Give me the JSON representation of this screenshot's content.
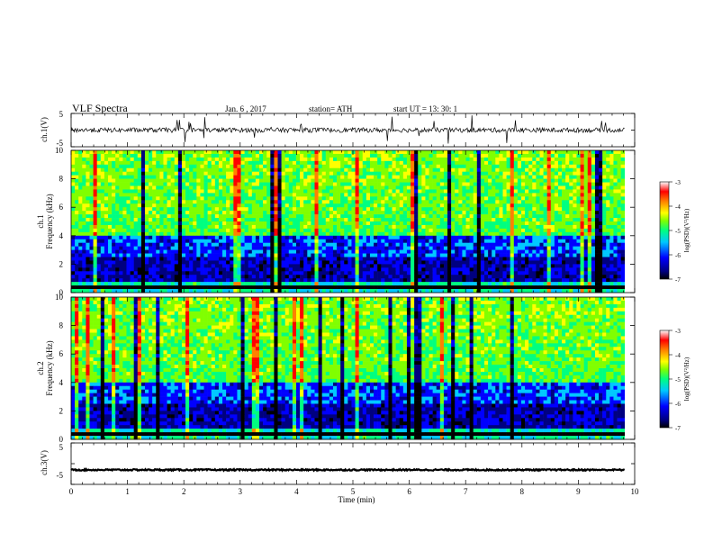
{
  "header": {
    "title": "VLF  Spectra",
    "date": "Jan. 6  , 2017",
    "station": "station= ATH",
    "start": "start  UT  =    13: 30: 1"
  },
  "colors": {
    "background": "#ffffff",
    "axis": "#000000",
    "colormap": [
      "#000000",
      "#000080",
      "#0000ff",
      "#00c8ff",
      "#00ff80",
      "#80ff00",
      "#ffff00",
      "#ff8000",
      "#ff0000",
      "#ffffff"
    ]
  },
  "chart_data": [
    {
      "type": "line",
      "panel": "ch1-waveform",
      "ylabel": "ch.1(V)",
      "yticks": [
        "5",
        "-5"
      ],
      "ylim": [
        -5,
        5
      ],
      "xlim": [
        0,
        10
      ],
      "baseline_value": 0,
      "line_color": "#000000"
    },
    {
      "type": "heatmap",
      "panel": "ch1-spectrogram",
      "ylabel_lines": [
        "ch.1",
        "Frequency  (kHz)"
      ],
      "yticks": [
        "0",
        "2",
        "4",
        "6",
        "8",
        "10"
      ],
      "ylim": [
        0,
        10
      ],
      "xlim": [
        0,
        10
      ],
      "colorbar": {
        "label": "log(PSD)(V²/Hz)",
        "ticks": [
          "-3",
          "-4",
          "-5",
          "-6",
          "-7"
        ],
        "range": [
          -7,
          -3
        ]
      }
    },
    {
      "type": "heatmap",
      "panel": "ch2-spectrogram",
      "ylabel_lines": [
        "ch.2",
        "Frequency  (kHz)"
      ],
      "yticks": [
        "0",
        "2",
        "4",
        "6",
        "8",
        "10"
      ],
      "ylim": [
        0,
        10
      ],
      "xlim": [
        0,
        10
      ],
      "colorbar": {
        "label": "log(PSD)(V²/Hz)",
        "ticks": [
          "-3",
          "-4",
          "-5",
          "-6",
          "-7"
        ],
        "range": [
          -7,
          -3
        ]
      }
    },
    {
      "type": "line",
      "panel": "ch3-waveform",
      "ylabel": "ch.3(V)",
      "yticks": [
        "5",
        "-5"
      ],
      "ylim": [
        -5,
        5
      ],
      "xlim": [
        0,
        10
      ],
      "baseline_value": -1.5,
      "line_color": "#000000"
    },
    {
      "type": "axis",
      "panel": "time-axis",
      "xlabel": "Time  (min)",
      "xticks": [
        "0",
        "1",
        "2",
        "3",
        "4",
        "5",
        "6",
        "7",
        "8",
        "9",
        "10"
      ],
      "xlim": [
        0,
        10
      ]
    }
  ]
}
